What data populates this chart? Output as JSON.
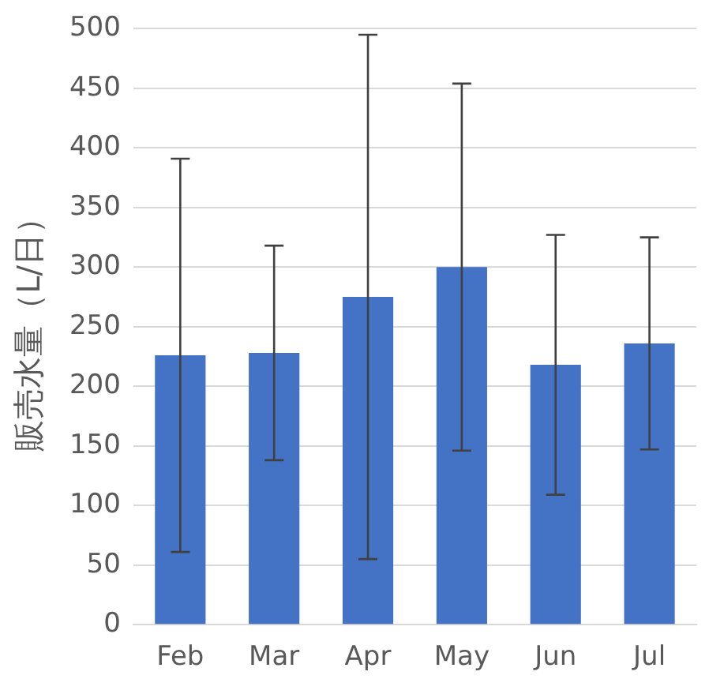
{
  "chart_data": {
    "type": "bar",
    "ylabel": "販売水量（L/日）",
    "categories": [
      "Feb",
      "Mar",
      "Apr",
      "May",
      "Jun",
      "Jul"
    ],
    "values": [
      226,
      228,
      275,
      300,
      218,
      236
    ],
    "errors": [
      165,
      90,
      220,
      154,
      109,
      89
    ],
    "color": "#4472c4",
    "ylim": [
      0,
      500
    ],
    "yticks": [
      0,
      50,
      100,
      150,
      200,
      250,
      300,
      350,
      400,
      450,
      500
    ],
    "grid": "y",
    "legend": false
  }
}
